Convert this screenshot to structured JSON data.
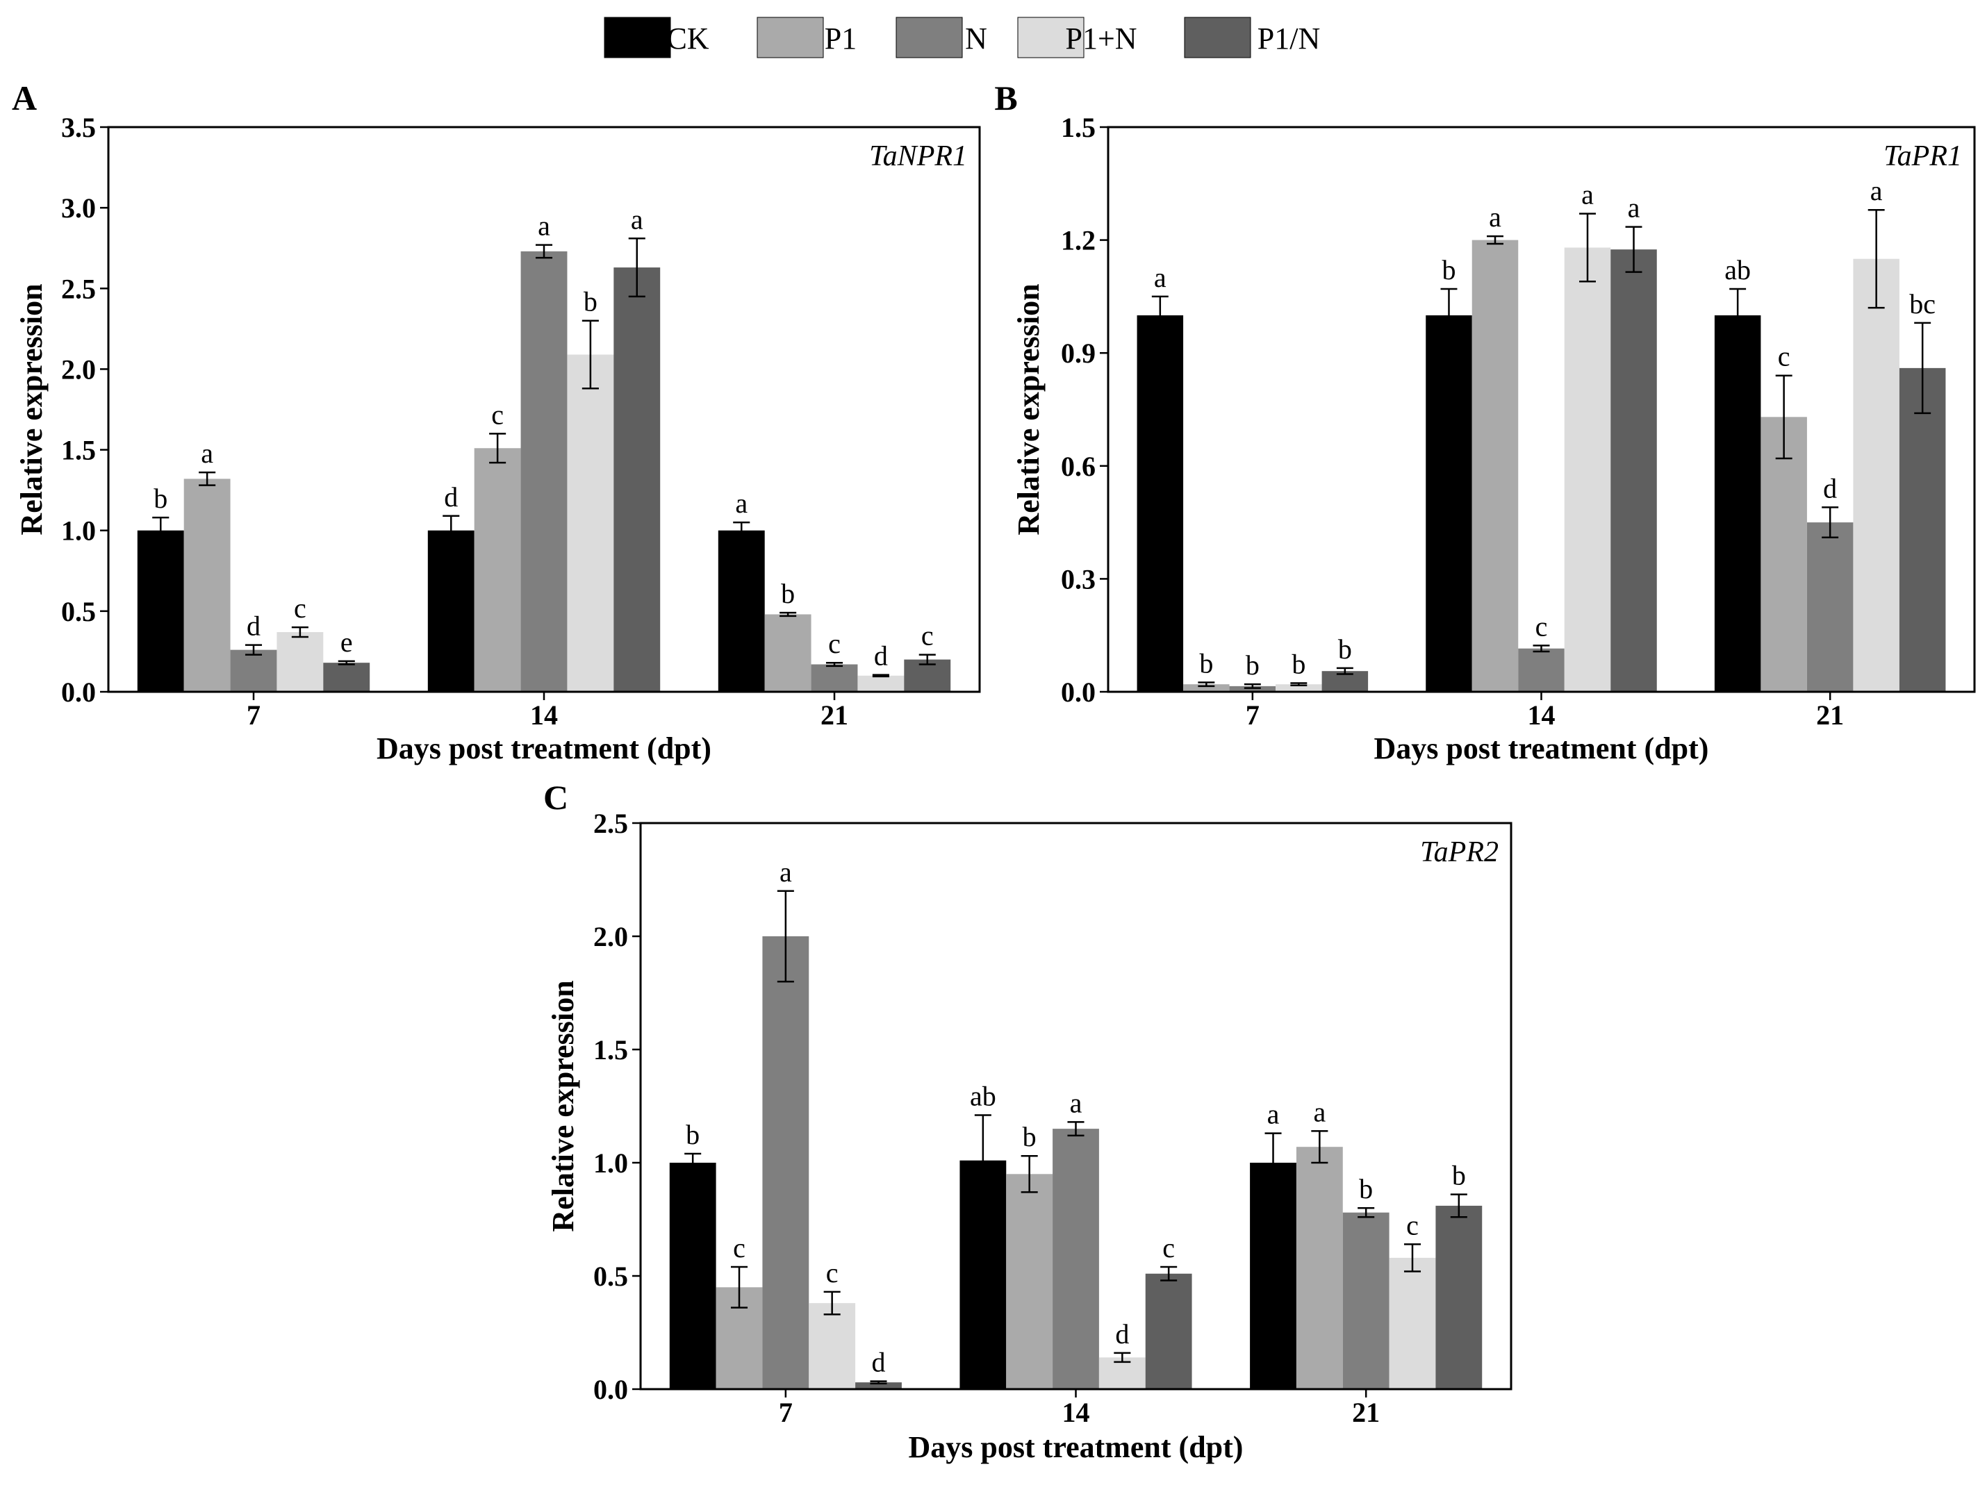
{
  "legend": [
    {
      "label": "CK",
      "color": "#000000"
    },
    {
      "label": "P1",
      "color": "#aaaaaa"
    },
    {
      "label": "N",
      "color": "#7f7f7f"
    },
    {
      "label": "P1+N",
      "color": "#dcdcdc"
    },
    {
      "label": "P1/N",
      "color": "#5f5f5f"
    }
  ],
  "chart_data": [
    {
      "panel": "A",
      "type": "bar",
      "gene": "TaNPR1",
      "xlabel": "Days post treatment (dpt)",
      "ylabel": "Relative expression",
      "categories": [
        "7",
        "14",
        "21"
      ],
      "ylim": [
        0,
        3.5
      ],
      "yticks": [
        "0.0",
        "0.5",
        "1.0",
        "1.5",
        "2.0",
        "2.5",
        "3.0",
        "3.5"
      ],
      "series": [
        {
          "name": "CK",
          "values": [
            1.0,
            1.0,
            1.0
          ],
          "errors": [
            0.08,
            0.09,
            0.05
          ],
          "sig": [
            "b",
            "d",
            "a"
          ]
        },
        {
          "name": "P1",
          "values": [
            1.32,
            1.51,
            0.48
          ],
          "errors": [
            0.04,
            0.09,
            0.01
          ],
          "sig": [
            "a",
            "c",
            "b"
          ]
        },
        {
          "name": "N",
          "values": [
            0.26,
            2.73,
            0.17
          ],
          "errors": [
            0.03,
            0.04,
            0.01
          ],
          "sig": [
            "d",
            "a",
            "c"
          ]
        },
        {
          "name": "P1+N",
          "values": [
            0.37,
            2.09,
            0.1
          ],
          "errors": [
            0.03,
            0.21,
            0.005
          ],
          "sig": [
            "c",
            "b",
            "d"
          ]
        },
        {
          "name": "P1/N",
          "values": [
            0.18,
            2.63,
            0.2
          ],
          "errors": [
            0.01,
            0.18,
            0.03
          ],
          "sig": [
            "e",
            "a",
            "c"
          ]
        }
      ]
    },
    {
      "panel": "B",
      "type": "bar",
      "gene": "TaPR1",
      "xlabel": "Days post treatment (dpt)",
      "ylabel": "Relative expression",
      "categories": [
        "7",
        "14",
        "21"
      ],
      "ylim": [
        0,
        1.5
      ],
      "yticks": [
        "0.0",
        "0.3",
        "0.6",
        "0.9",
        "1.2",
        "1.5"
      ],
      "series": [
        {
          "name": "CK",
          "values": [
            1.0,
            1.0,
            1.0
          ],
          "errors": [
            0.05,
            0.07,
            0.07
          ],
          "sig": [
            "a",
            "b",
            "ab"
          ]
        },
        {
          "name": "P1",
          "values": [
            0.02,
            1.2,
            0.73
          ],
          "errors": [
            0.005,
            0.01,
            0.11
          ],
          "sig": [
            "b",
            "a",
            "c"
          ]
        },
        {
          "name": "N",
          "values": [
            0.015,
            0.115,
            0.45
          ],
          "errors": [
            0.005,
            0.008,
            0.04
          ],
          "sig": [
            "b",
            "c",
            "d"
          ]
        },
        {
          "name": "P1+N",
          "values": [
            0.02,
            1.18,
            1.15
          ],
          "errors": [
            0.003,
            0.09,
            0.13
          ],
          "sig": [
            "b",
            "a",
            "a"
          ]
        },
        {
          "name": "P1/N",
          "values": [
            0.055,
            1.175,
            0.86
          ],
          "errors": [
            0.008,
            0.06,
            0.12
          ],
          "sig": [
            "b",
            "a",
            "bc"
          ]
        }
      ]
    },
    {
      "panel": "C",
      "type": "bar",
      "gene": "TaPR2",
      "xlabel": "Days post treatment (dpt)",
      "ylabel": "Relative expression",
      "categories": [
        "7",
        "14",
        "21"
      ],
      "ylim": [
        0,
        2.5
      ],
      "yticks": [
        "0.0",
        "0.5",
        "1.0",
        "1.5",
        "2.0",
        "2.5"
      ],
      "series": [
        {
          "name": "CK",
          "values": [
            1.0,
            1.01,
            1.0
          ],
          "errors": [
            0.04,
            0.2,
            0.13
          ],
          "sig": [
            "b",
            "ab",
            "a"
          ]
        },
        {
          "name": "P1",
          "values": [
            0.45,
            0.95,
            1.07
          ],
          "errors": [
            0.09,
            0.08,
            0.07
          ],
          "sig": [
            "c",
            "b",
            "a"
          ]
        },
        {
          "name": "N",
          "values": [
            2.0,
            1.15,
            0.78
          ],
          "errors": [
            0.2,
            0.03,
            0.02
          ],
          "sig": [
            "a",
            "a",
            "b"
          ]
        },
        {
          "name": "P1+N",
          "values": [
            0.38,
            0.14,
            0.58
          ],
          "errors": [
            0.05,
            0.02,
            0.06
          ],
          "sig": [
            "c",
            "d",
            "c"
          ]
        },
        {
          "name": "P1/N",
          "values": [
            0.03,
            0.51,
            0.81
          ],
          "errors": [
            0.005,
            0.03,
            0.05
          ],
          "sig": [
            "d",
            "c",
            "b"
          ]
        }
      ]
    }
  ]
}
